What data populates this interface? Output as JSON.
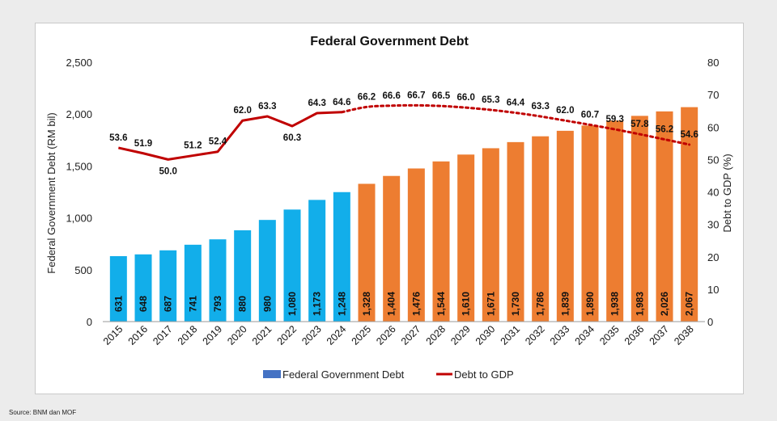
{
  "chart_data": {
    "type": "bar",
    "title": "Federal Government Debt",
    "ylabel": "Federal Government Debt (RM bil)",
    "y2label": "Debt to GDP (%)",
    "ylim": [
      0,
      2500
    ],
    "y2lim": [
      0,
      80
    ],
    "yticks": [
      "0",
      "500",
      "1,000",
      "1,500",
      "2,000",
      "2,500"
    ],
    "y2ticks": [
      "0",
      "10",
      "20",
      "30",
      "40",
      "50",
      "60",
      "70",
      "80"
    ],
    "categories": [
      "2015",
      "2016",
      "2017",
      "2018",
      "2019",
      "2020",
      "2021",
      "2022",
      "2023",
      "2024",
      "2025",
      "2026",
      "2027",
      "2028",
      "2029",
      "2030",
      "2031",
      "2032",
      "2033",
      "2034",
      "2035",
      "2036",
      "2037",
      "2038"
    ],
    "series": [
      {
        "name": "Federal Government Debt",
        "type": "bar",
        "values": [
          631,
          648,
          687,
          741,
          793,
          880,
          980,
          1080,
          1173,
          1248,
          1328,
          1404,
          1476,
          1544,
          1610,
          1671,
          1730,
          1786,
          1839,
          1890,
          1938,
          1983,
          2026,
          2067
        ],
        "labels": [
          "631",
          "648",
          "687",
          "741",
          "793",
          "880",
          "980",
          "1,080",
          "1,173",
          "1,248",
          "1,328",
          "1,404",
          "1,476",
          "1,544",
          "1,610",
          "1,671",
          "1,730",
          "1,786",
          "1,839",
          "1,890",
          "1,938",
          "1,983",
          "2,026",
          "2,067"
        ],
        "actual_color": "#12aeea",
        "projected_color": "#ed7d31",
        "actual_count": 10
      },
      {
        "name": "Debt to GDP",
        "type": "line",
        "axis": "right",
        "values": [
          53.6,
          51.9,
          50.0,
          51.2,
          52.4,
          62.0,
          63.3,
          60.3,
          64.3,
          64.6,
          66.2,
          66.6,
          66.7,
          66.5,
          66.0,
          65.3,
          64.4,
          63.3,
          62.0,
          60.7,
          59.3,
          57.8,
          56.2,
          54.6
        ],
        "labels": [
          "53.6",
          "51.9",
          "50.0",
          "51.2",
          "52.4",
          "62.0",
          "63.3",
          "60.3",
          "64.3",
          "64.6",
          "66.2",
          "66.6",
          "66.7",
          "66.5",
          "66.0",
          "65.3",
          "64.4",
          "63.3",
          "62.0",
          "60.7",
          "59.3",
          "57.8",
          "56.2",
          "54.6"
        ],
        "color": "#c00000",
        "actual_count": 10
      }
    ],
    "legend_position": "bottom",
    "grid": false
  },
  "legend": {
    "debt": "Federal Government Debt",
    "ratio": "Debt to GDP"
  },
  "source": "Source: BNM dan MOF"
}
